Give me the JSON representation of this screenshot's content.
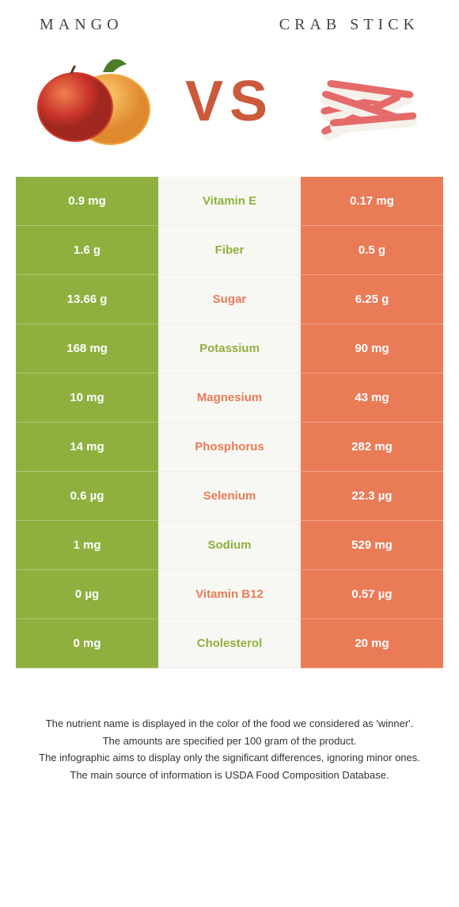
{
  "title_left": "Mango",
  "title_right": "Crab stick",
  "vs_label": "VS",
  "colors": {
    "left": "#8fb03e",
    "right": "#e97b57",
    "mid_bg": "#f7f8f3"
  },
  "rows": [
    {
      "left": "0.9 mg",
      "label": "Vitamin E",
      "right": "0.17 mg",
      "winner": "left"
    },
    {
      "left": "1.6 g",
      "label": "Fiber",
      "right": "0.5 g",
      "winner": "left"
    },
    {
      "left": "13.66 g",
      "label": "Sugar",
      "right": "6.25 g",
      "winner": "right"
    },
    {
      "left": "168 mg",
      "label": "Potassium",
      "right": "90 mg",
      "winner": "left"
    },
    {
      "left": "10 mg",
      "label": "Magnesium",
      "right": "43 mg",
      "winner": "right"
    },
    {
      "left": "14 mg",
      "label": "Phosphorus",
      "right": "282 mg",
      "winner": "right"
    },
    {
      "left": "0.6 µg",
      "label": "Selenium",
      "right": "22.3 µg",
      "winner": "right"
    },
    {
      "left": "1 mg",
      "label": "Sodium",
      "right": "529 mg",
      "winner": "left"
    },
    {
      "left": "0 µg",
      "label": "Vitamin B12",
      "right": "0.57 µg",
      "winner": "right"
    },
    {
      "left": "0 mg",
      "label": "Cholesterol",
      "right": "20 mg",
      "winner": "left"
    }
  ],
  "footer": [
    "The nutrient name is displayed in the color of the food we considered as 'winner'.",
    "The amounts are specified per 100 gram of the product.",
    "The infographic aims to display only the significant differences, ignoring minor ones.",
    "The main source of information is USDA Food Composition Database."
  ]
}
